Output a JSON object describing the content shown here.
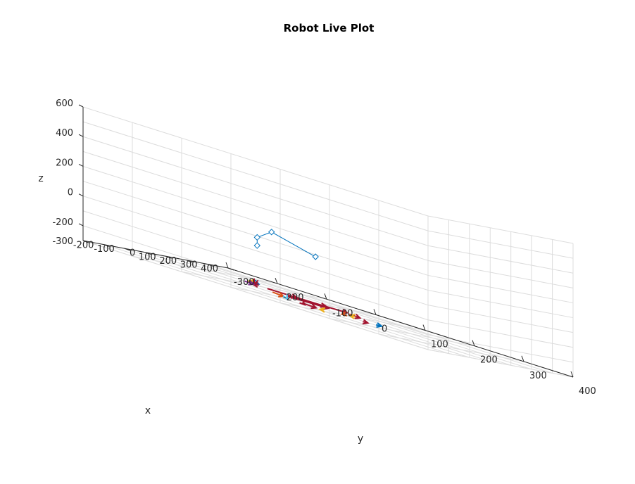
{
  "chart_data": {
    "type": "scatter",
    "title": "Robot Live Plot",
    "xlabel": "x",
    "ylabel": "y",
    "zlabel": "z",
    "xlim": [
      -300,
      400
    ],
    "ylim": [
      -300,
      400
    ],
    "zlim": [
      -300,
      600
    ],
    "x_ticks": [
      "-300",
      "-200",
      "-100",
      "0",
      "100",
      "200",
      "300",
      "400"
    ],
    "y_ticks": [
      "-300",
      "-200",
      "-100",
      "0",
      "100",
      "200",
      "300",
      "400"
    ],
    "z_ticks": [
      "-200",
      "0",
      "200",
      "400",
      "600"
    ],
    "grid": true,
    "colors": {
      "arm": "#0072BD",
      "red": "#A2142F",
      "orange": "#D95319",
      "yellow": "#EDB120",
      "purple": "#7E2F8E",
      "green": "#77AC30",
      "cyan": "#4DBEEE",
      "blue": "#0072BD"
    },
    "robot_arm": {
      "joints": [
        {
          "x": -90,
          "y": -35,
          "z": 0
        },
        {
          "x": -90,
          "y": -35,
          "z": 55
        },
        {
          "x": -80,
          "y": -10,
          "z": 120
        },
        {
          "x": -70,
          "y": 75,
          "z": 45
        }
      ]
    },
    "trajectory_arrows": [
      {
        "x": 180,
        "y": -155,
        "u": -25,
        "v": 0,
        "color": "yellow"
      },
      {
        "x": 175,
        "y": -150,
        "u": -20,
        "v": 15,
        "color": "blue"
      },
      {
        "x": 160,
        "y": -145,
        "u": -50,
        "v": 20,
        "color": "red"
      },
      {
        "x": 120,
        "y": -120,
        "u": -40,
        "v": 5,
        "color": "red"
      },
      {
        "x": 100,
        "y": -140,
        "u": -5,
        "v": 20,
        "color": "purple"
      },
      {
        "x": 90,
        "y": -90,
        "u": 10,
        "v": 55,
        "color": "red"
      },
      {
        "x": 20,
        "y": -50,
        "u": -30,
        "v": 35,
        "color": "orange"
      },
      {
        "x": 40,
        "y": -30,
        "u": 35,
        "v": 70,
        "color": "red"
      },
      {
        "x": 100,
        "y": -40,
        "u": 10,
        "v": 60,
        "color": "red"
      },
      {
        "x": 110,
        "y": 10,
        "u": 20,
        "v": 45,
        "color": "red"
      },
      {
        "x": 105,
        "y": 70,
        "u": -20,
        "v": 30,
        "color": "red"
      },
      {
        "x": 60,
        "y": 80,
        "u": -50,
        "v": 15,
        "color": "orange"
      },
      {
        "x": 75,
        "y": 95,
        "u": -15,
        "v": -5,
        "color": "yellow"
      },
      {
        "x": -20,
        "y": -5,
        "u": -55,
        "v": 25,
        "color": "cyan"
      },
      {
        "x": -40,
        "y": 35,
        "u": -15,
        "v": 35,
        "color": "red"
      },
      {
        "x": -55,
        "y": 45,
        "u": -20,
        "v": 10,
        "color": "red"
      },
      {
        "x": -40,
        "y": 80,
        "u": -25,
        "v": 2,
        "color": "yellow"
      },
      {
        "x": -20,
        "y": 150,
        "u": 10,
        "v": 6,
        "color": "red"
      },
      {
        "x": 20,
        "y": 160,
        "u": 15,
        "v": 5,
        "color": "blue"
      }
    ]
  }
}
